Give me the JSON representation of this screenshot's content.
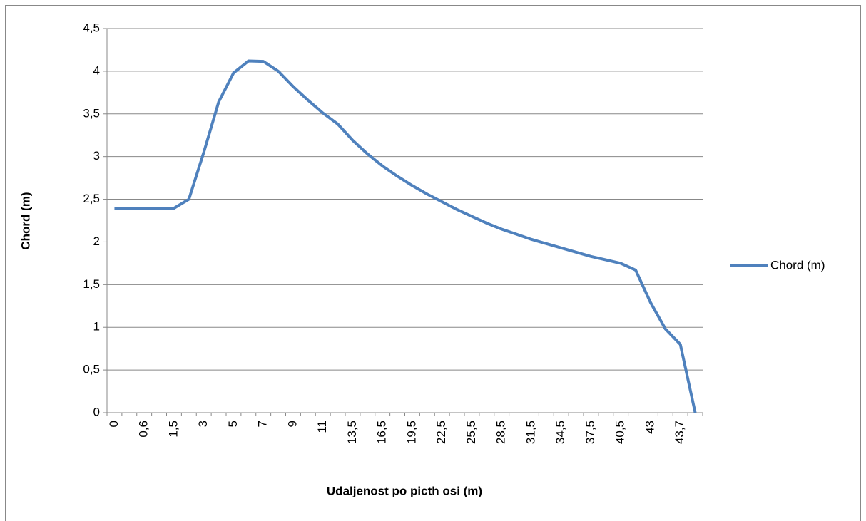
{
  "chart_data": {
    "type": "line",
    "x_label": "Udaljenost po picth osi (m)",
    "y_label": "Chord (m)",
    "categories": [
      "0",
      null,
      "0,6",
      null,
      "1,5",
      null,
      "3",
      null,
      "5",
      null,
      "7",
      null,
      "9",
      null,
      "11",
      null,
      "13,5",
      null,
      "16,5",
      null,
      "19,5",
      null,
      "22,5",
      null,
      "25,5",
      null,
      "28,5",
      null,
      "31,5",
      null,
      "34,5",
      null,
      "37,5",
      null,
      "40,5",
      null,
      "43",
      null,
      "43,7",
      null
    ],
    "series": [
      {
        "name": "Chord (m)",
        "color": "#4f81bd",
        "values": [
          2.39,
          2.39,
          2.39,
          2.39,
          2.395,
          2.5,
          3.05,
          3.64,
          3.98,
          4.12,
          4.115,
          4.0,
          3.82,
          3.66,
          3.51,
          3.38,
          3.19,
          3.03,
          2.89,
          2.77,
          2.66,
          2.56,
          2.47,
          2.38,
          2.3,
          2.22,
          2.15,
          2.09,
          2.03,
          1.98,
          1.93,
          1.88,
          1.83,
          1.79,
          1.75,
          1.67,
          1.29,
          0.98,
          0.8,
          0
        ]
      }
    ],
    "ylim": [
      0,
      4.5
    ],
    "yticks": [
      0,
      {
        "value": 0.5,
        "label": "0,5"
      },
      1,
      {
        "value": 1.5,
        "label": "1,5"
      },
      2,
      {
        "value": 2.5,
        "label": "2,5"
      },
      3,
      {
        "value": 3.5,
        "label": "3,5"
      },
      4,
      {
        "value": 4.5,
        "label": "4,5"
      }
    ],
    "grid": true,
    "legend": "right"
  }
}
